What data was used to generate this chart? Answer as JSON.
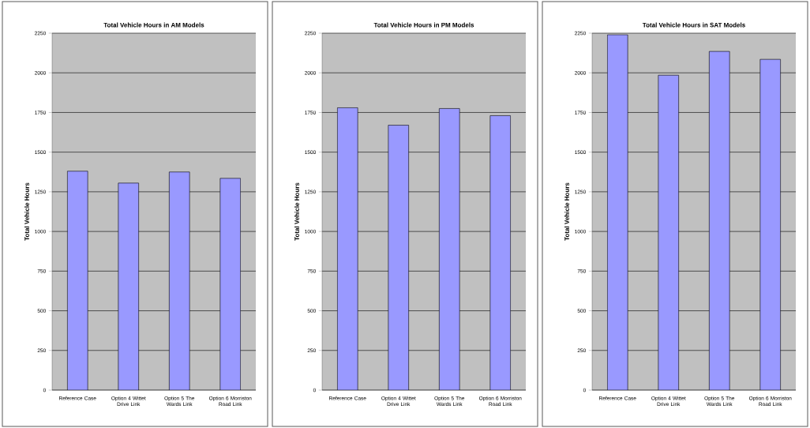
{
  "chart_data": [
    {
      "type": "bar",
      "title": "Total Vehicle Hours in AM Models",
      "ylabel": "Total Vehicle Hours",
      "categories": [
        "Reference Case",
        "Option 4 Wittet Drive Link",
        "Option 5 The Wards Link",
        "Option 6 Morriston Road Link"
      ],
      "values": [
        1380,
        1305,
        1375,
        1335
      ],
      "color": "#9999ff",
      "ylim": [
        0,
        2250
      ],
      "yticks": [
        0,
        250,
        500,
        750,
        1000,
        1250,
        1500,
        1750,
        2000,
        2250
      ],
      "grid": "y"
    },
    {
      "type": "bar",
      "title": "Total Vehicle Hours in PM Models",
      "ylabel": "Total Vehicle Hours",
      "categories": [
        "Reference Case",
        "Option 4 Wittet Drive Link",
        "Option 5 The Wards Link",
        "Option 6 Morriston Road Link"
      ],
      "values": [
        1780,
        1670,
        1775,
        1730
      ],
      "color": "#9999ff",
      "ylim": [
        0,
        2250
      ],
      "yticks": [
        0,
        250,
        500,
        750,
        1000,
        1250,
        1500,
        1750,
        2000,
        2250
      ],
      "grid": "y"
    },
    {
      "type": "bar",
      "title": "Total Vehicle Hours in SAT Models",
      "ylabel": "Total Vehicle Hours",
      "categories": [
        "Reference Case",
        "Option 4 Wittet Drive Link",
        "Option 5 The Wards Link",
        "Option 6 Morriston Road Link"
      ],
      "values": [
        2240,
        1985,
        2135,
        2085
      ],
      "color": "#9999ff",
      "ylim": [
        0,
        2250
      ],
      "yticks": [
        0,
        250,
        500,
        750,
        1000,
        1250,
        1500,
        1750,
        2000,
        2250
      ],
      "grid": "y"
    }
  ]
}
